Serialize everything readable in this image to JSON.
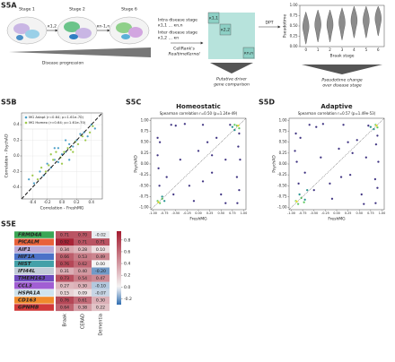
{
  "panels": {
    "a": {
      "label": "S5A",
      "stages": [
        "Stage 1",
        "Stage 2",
        "Stage 6"
      ],
      "arrow_labels": [
        "κ1,2",
        "κn-1,n"
      ],
      "progression": "Disease progression",
      "intra": "Intra disease stage",
      "intra_formula": "κ1,1 … κn,n",
      "inter": "Inter disease stage",
      "inter_formula": "κ1,2 … κn",
      "kernel": [
        "CellRank's",
        "RealtimeKernel"
      ],
      "matrix_labels": [
        "κ1,1",
        "κ2,2",
        "κn,n"
      ],
      "dpt": "DPT",
      "driver": [
        "Putative driver",
        "gene comparison"
      ],
      "pseudo": [
        "Pseudotime change",
        "over disease stage"
      ]
    },
    "b": {
      "label": "S5B"
    },
    "c": {
      "label": "S5C"
    },
    "d": {
      "label": "S5D"
    },
    "e": {
      "label": "S5E"
    }
  },
  "chart_data": [
    {
      "type": "violin",
      "xlabel": "Braak stage",
      "ylabel": "Pseudotime",
      "categories": [
        "0",
        "1",
        "2",
        "3",
        "4",
        "5",
        "6"
      ],
      "values": [
        0.45,
        0.5,
        0.5,
        0.55,
        0.6,
        0.6,
        0.65
      ],
      "color": "#8c8c8c",
      "ylim": [
        0,
        1
      ],
      "yticks": [
        {
          "value": 0,
          "label": "0.00"
        },
        0.25,
        {
          "value": 0.5,
          "label": "0.50"
        },
        0.75,
        {
          "value": 1,
          "label": "1.00"
        }
      ],
      "grid": false
    },
    {
      "type": "scatter",
      "xlabel": "Correlation - FreshMG",
      "ylabel": "Correlation - PsychAD",
      "legend": "upper left",
      "grid": true,
      "diagonal": "dashed",
      "xlim": [
        -0.55,
        0.55
      ],
      "ylim": [
        -0.55,
        0.55
      ],
      "xticks": [
        -0.4,
        -0.2,
        {
          "value": 0,
          "label": "0.0"
        },
        0.2,
        0.4
      ],
      "yticks": [
        -0.4,
        -0.2,
        {
          "value": 0,
          "label": "0.0"
        },
        0.2,
        0.4
      ],
      "series": [
        {
          "name": "MG Adapt (r=0.64; p=1.61e-70)",
          "color": "#4a9fc7",
          "x": [
            -0.45,
            -0.38,
            -0.3,
            -0.25,
            -0.2,
            -0.15,
            -0.1,
            -0.05,
            0,
            0.05,
            0.1,
            0.15,
            0.2,
            0.25,
            0.3,
            0.35,
            0.4,
            0.45,
            -0.1,
            0.1,
            0.05,
            -0.05
          ],
          "values": [
            -0.3,
            -0.35,
            -0.2,
            -0.25,
            -0.1,
            -0.15,
            -0.05,
            -0.08,
            0.02,
            0.05,
            0.15,
            0.12,
            0.2,
            0.28,
            0.3,
            0.25,
            0.4,
            0.35,
            0.1,
            -0.05,
            0.2,
            0.1
          ]
        },
        {
          "name": "MG Homeo (r=0.64; p=1.61e-70)",
          "color": "#9cc84a",
          "x": [
            -0.4,
            -0.33,
            -0.28,
            -0.22,
            -0.18,
            -0.12,
            -0.08,
            -0.02,
            0.03,
            0.08,
            0.12,
            0.18,
            0.22,
            0.28,
            0.32,
            0.38,
            0.42,
            0,
            -0.15,
            0.15
          ],
          "values": [
            -0.25,
            -0.3,
            -0.15,
            -0.2,
            -0.12,
            -0.05,
            0.05,
            -0.02,
            0.05,
            0.1,
            0.08,
            0.18,
            0.15,
            0.25,
            0.2,
            0.3,
            0.38,
            -0.1,
            0.02,
            0.05
          ]
        }
      ]
    },
    {
      "type": "scatter",
      "title": "Homeostatic",
      "subtitle": "Spearman correlation r=0.50 (p=1.24e-49)",
      "xlabel": "FreshMG",
      "ylabel": "PsychAD",
      "grid": false,
      "diagonal": "dotted",
      "xlim": [
        -1.05,
        1.05
      ],
      "ylim": [
        -1.05,
        1.05
      ],
      "xticks": [
        {
          "value": -1,
          "label": "-1.00"
        },
        -0.75,
        {
          "value": -0.5,
          "label": "-0.50"
        },
        -0.25,
        {
          "value": 0,
          "label": "0.00"
        },
        0.25,
        {
          "value": 0.5,
          "label": "0.50"
        },
        0.75,
        {
          "value": 1,
          "label": "1.00"
        }
      ],
      "yticks": [
        {
          "value": -1,
          "label": "-1.00"
        },
        -0.75,
        {
          "value": -0.5,
          "label": "-0.50"
        },
        -0.25,
        {
          "value": 0,
          "label": "0.00"
        },
        0.25,
        {
          "value": 0.5,
          "label": "0.50"
        },
        0.75,
        {
          "value": 1,
          "label": "1.00"
        }
      ],
      "series": [
        {
          "color": "#3b2f7f",
          "x": [
            -0.9,
            -0.85,
            -0.6,
            -0.5,
            -0.3,
            -0.2,
            0,
            0.1,
            0.3,
            0.4,
            0.5,
            0.6,
            0.85,
            0.9,
            0.88,
            0.92,
            0.86,
            0.9,
            -0.7,
            -0.4,
            0.2,
            -0.1,
            0.7,
            -0.88,
            -0.9,
            -0.86,
            0.3,
            -0.55,
            0.6,
            0.1
          ],
          "values": [
            0.2,
            0.5,
            0.9,
            0.88,
            0.92,
            -0.5,
            0.3,
            0.9,
            -0.2,
            0.6,
            -0.7,
            0.1,
            -0.3,
            -0.6,
            0.4,
            0.1,
            -0.9,
            0.7,
            -0.3,
            0.1,
            0.5,
            -0.85,
            0.9,
            -0.1,
            0.6,
            -0.5,
            0.2,
            -0.7,
            -0.9,
            -0.4
          ]
        },
        {
          "color": "#21918c",
          "x": [
            -0.8,
            -0.75,
            0.75,
            0.8
          ],
          "values": [
            -0.75,
            -0.85,
            0.85,
            0.78
          ]
        },
        {
          "color": "#5ec962",
          "x": [
            -0.9,
            -0.85,
            -0.8,
            0.85,
            0.9,
            0.8
          ],
          "values": [
            -0.85,
            -0.9,
            -0.8,
            0.88,
            0.82,
            0.9
          ]
        },
        {
          "color": "#fde725",
          "x": [
            -0.88,
            0.88
          ],
          "values": [
            -0.88,
            0.88
          ]
        }
      ]
    },
    {
      "type": "scatter",
      "title": "Adaptive",
      "subtitle": "Spearman correlation r=0.57 (p=1.49e-53)",
      "xlabel": "FreshMG",
      "ylabel": "PsychAD",
      "grid": false,
      "diagonal": "dotted",
      "xlim": [
        -1.05,
        1.05
      ],
      "ylim": [
        -1.05,
        1.05
      ],
      "xticks": [
        {
          "value": -1,
          "label": "-1.00"
        },
        -0.75,
        {
          "value": -0.5,
          "label": "-0.50"
        },
        -0.25,
        {
          "value": 0,
          "label": "0.00"
        },
        0.25,
        {
          "value": 0.5,
          "label": "0.50"
        },
        0.75,
        {
          "value": 1,
          "label": "1.00"
        }
      ],
      "yticks": [
        {
          "value": -1,
          "label": "-1.00"
        },
        -0.75,
        {
          "value": -0.5,
          "label": "-0.50"
        },
        -0.25,
        {
          "value": 0,
          "label": "0.00"
        },
        0.25,
        {
          "value": 0.5,
          "label": "0.50"
        },
        0.75,
        {
          "value": 1,
          "label": "1.00"
        }
      ],
      "series": [
        {
          "color": "#3b2f7f",
          "x": [
            -0.92,
            -0.8,
            -0.6,
            -0.45,
            -0.3,
            -0.15,
            0.05,
            0.15,
            0.3,
            0.45,
            0.55,
            0.65,
            0.85,
            0.9,
            0.87,
            0.92,
            0.86,
            0.9,
            -0.7,
            -0.35,
            0.25,
            -0.1,
            0.7,
            -0.88,
            -0.9,
            -0.84,
            0.35,
            -0.5,
            0.6,
            0.1
          ],
          "values": [
            0.3,
            0.6,
            0.9,
            0.85,
            0.92,
            -0.45,
            0.35,
            0.9,
            -0.25,
            0.55,
            -0.7,
            0.15,
            -0.35,
            -0.55,
            0.45,
            0.05,
            -0.9,
            0.65,
            -0.2,
            0.15,
            0.5,
            -0.8,
            0.88,
            0.05,
            0.7,
            -0.45,
            0.25,
            -0.6,
            -0.92,
            -0.3
          ]
        },
        {
          "color": "#21918c",
          "x": [
            -0.82,
            -0.7,
            -0.65,
            0.75,
            0.82
          ],
          "values": [
            -0.7,
            -0.82,
            -0.6,
            0.85,
            0.8
          ]
        },
        {
          "color": "#5ec962",
          "x": [
            -0.9,
            -0.85,
            -0.78,
            -0.72,
            0.86,
            0.9
          ],
          "values": [
            -0.85,
            -0.92,
            -0.78,
            -0.88,
            0.9,
            0.84
          ]
        },
        {
          "color": "#fde725",
          "x": [
            -0.88,
            0.88
          ],
          "values": [
            -0.86,
            0.88
          ]
        }
      ]
    },
    {
      "type": "heatmap",
      "rows": [
        "FRMD4A",
        "PICALM",
        "AIF1",
        "HIF1A",
        "HIST",
        "IFI44L",
        "TMEM163",
        "CCL3",
        "HSPA1A",
        "CD163",
        "GPNMB"
      ],
      "row_colors": [
        "#3aa655",
        "#e8613a",
        "#b9a9d8",
        "#4b72c8",
        "#43a0a8",
        "#c2ccd8",
        "#6f4bbd",
        "#a15ed3",
        "#cfe3ef",
        "#f08a2c",
        "#d23a3a"
      ],
      "columns": [
        "Braak",
        "CERAD",
        "Dementia"
      ],
      "values": [
        [
          0.71,
          0.7,
          -0.02
        ],
        [
          0.92,
          0.71,
          0.71
        ],
        [
          0.34,
          0.28,
          0.1
        ],
        [
          0.66,
          0.53,
          0.49
        ],
        [
          0.76,
          0.62,
          0.0
        ],
        [
          0.31,
          0.4,
          -0.2
        ],
        [
          0.73,
          0.54,
          0.47
        ],
        [
          0.27,
          0.3,
          -0.1
        ],
        [
          0.15,
          0.09,
          -0.07
        ],
        [
          0.76,
          0.61,
          0.3
        ],
        [
          0.64,
          0.38,
          0.22
        ]
      ],
      "value_labels": [
        [
          "0.71",
          "0.70",
          "-0.02"
        ],
        [
          "0.92",
          "0.71",
          "0.71"
        ],
        [
          "0.34",
          "0.28",
          "0.10"
        ],
        [
          "0.66",
          "0.53",
          "0.49"
        ],
        [
          "0.76",
          "0.62",
          "0.00"
        ],
        [
          "0.31",
          "0.40",
          "-0.20"
        ],
        [
          "0.73",
          "0.54",
          "0.47"
        ],
        [
          "0.27",
          "0.30",
          "-0.10"
        ],
        [
          "0.15",
          "0.09",
          "-0.07"
        ],
        [
          "0.76",
          "0.61",
          "0.30"
        ],
        [
          "0.64",
          "0.38",
          "0.22"
        ]
      ],
      "clim": [
        -0.3,
        0.95
      ],
      "cticks": [
        0.8,
        0.6,
        0.4,
        0.2,
        {
          "value": 0,
          "label": "0.0"
        },
        -0.2
      ],
      "low_color": "#2f6db0",
      "mid_color": "#f5f5f5",
      "high_color": "#a51c30"
    }
  ]
}
